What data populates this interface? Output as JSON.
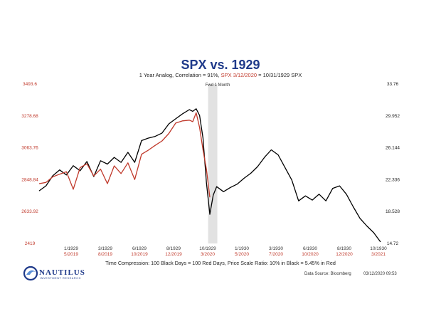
{
  "chart_data": {
    "type": "line",
    "title": "SPX vs. 1929",
    "subtitle": {
      "part1": "1 Year Analog, Correlation = 91%, ",
      "part2": "SPX 3/12/2020",
      "part3": " = 10/31/1929 SPX"
    },
    "left_axis": {
      "ticks": [
        "3493.6",
        "3278.68",
        "3063.76",
        "2848.84",
        "2633.92",
        "2419"
      ],
      "ylim": [
        2419,
        3493.6
      ],
      "color": "#c0392b"
    },
    "right_axis": {
      "ticks": [
        "33.76",
        "29.952",
        "26.144",
        "22.336",
        "18.528",
        "14.72"
      ],
      "ylim": [
        14.72,
        33.76
      ],
      "color": "#000000"
    },
    "x_axis_1929": [
      "1/1929",
      "3/1929",
      "6/1929",
      "8/1929",
      "10/1929",
      "1/1930",
      "3/1930",
      "6/1930",
      "8/1930",
      "10/1930"
    ],
    "x_axis_2020": [
      "5/2019",
      "8/2019",
      "10/2019",
      "12/2019",
      "3/2020",
      "5/2020",
      "7/2020",
      "10/2020",
      "12/2020",
      "3/2021"
    ],
    "shaded_region": {
      "label": "Fwd 1 Month",
      "x_start": 0.495,
      "x_end": 0.522
    },
    "series": [
      {
        "color": "#000000",
        "axis": "right",
        "x": [
          0.0,
          0.02,
          0.04,
          0.06,
          0.08,
          0.1,
          0.12,
          0.14,
          0.16,
          0.18,
          0.2,
          0.22,
          0.24,
          0.26,
          0.28,
          0.3,
          0.32,
          0.34,
          0.36,
          0.38,
          0.4,
          0.42,
          0.44,
          0.45,
          0.46,
          0.47,
          0.48,
          0.49,
          0.5,
          0.51,
          0.52,
          0.54,
          0.56,
          0.58,
          0.6,
          0.62,
          0.64,
          0.66,
          0.68,
          0.7,
          0.72,
          0.74,
          0.76,
          0.78,
          0.8,
          0.82,
          0.84,
          0.86,
          0.88,
          0.9,
          0.92,
          0.94,
          0.96,
          0.98,
          1.0
        ],
        "y": [
          21.0,
          21.6,
          22.8,
          23.5,
          22.9,
          24.0,
          23.4,
          24.5,
          22.7,
          24.6,
          24.2,
          25.0,
          24.4,
          25.6,
          24.4,
          27.0,
          27.3,
          27.5,
          27.9,
          29.0,
          29.6,
          30.2,
          30.7,
          30.5,
          30.8,
          30.0,
          27.3,
          22.0,
          18.2,
          20.5,
          21.5,
          20.9,
          21.4,
          21.8,
          22.5,
          23.1,
          23.9,
          25.0,
          25.9,
          25.3,
          23.8,
          22.3,
          19.8,
          20.4,
          19.9,
          20.6,
          19.8,
          21.3,
          21.6,
          20.6,
          19.1,
          17.7,
          16.8,
          16.0,
          14.9
        ]
      },
      {
        "color": "#c0392b",
        "axis": "left",
        "x": [
          0.0,
          0.02,
          0.04,
          0.06,
          0.08,
          0.1,
          0.12,
          0.14,
          0.16,
          0.18,
          0.2,
          0.22,
          0.24,
          0.26,
          0.28,
          0.3,
          0.32,
          0.34,
          0.36,
          0.38,
          0.4,
          0.42,
          0.44,
          0.45,
          0.46,
          0.47,
          0.48,
          0.49,
          0.5
        ],
        "y": [
          2822,
          2830,
          2868,
          2886,
          2902,
          2784,
          2930,
          2956,
          2874,
          2920,
          2822,
          2942,
          2890,
          2962,
          2850,
          3020,
          3048,
          3080,
          3110,
          3160,
          3230,
          3245,
          3250,
          3240,
          3300,
          3200,
          3050,
          2920,
          2730
        ]
      }
    ],
    "footer": {
      "line1": "Time Compression: 100 Black Days = 100 Red Days,  Price Scale Ratio: 10% in Black = 5.45% in Red",
      "source": "Data Source: Bloomberg",
      "timestamp": "03/12/2020 09:53"
    },
    "logo": {
      "name": "NAUTILUS",
      "sub": "INVESTMENT RESEARCH"
    }
  }
}
